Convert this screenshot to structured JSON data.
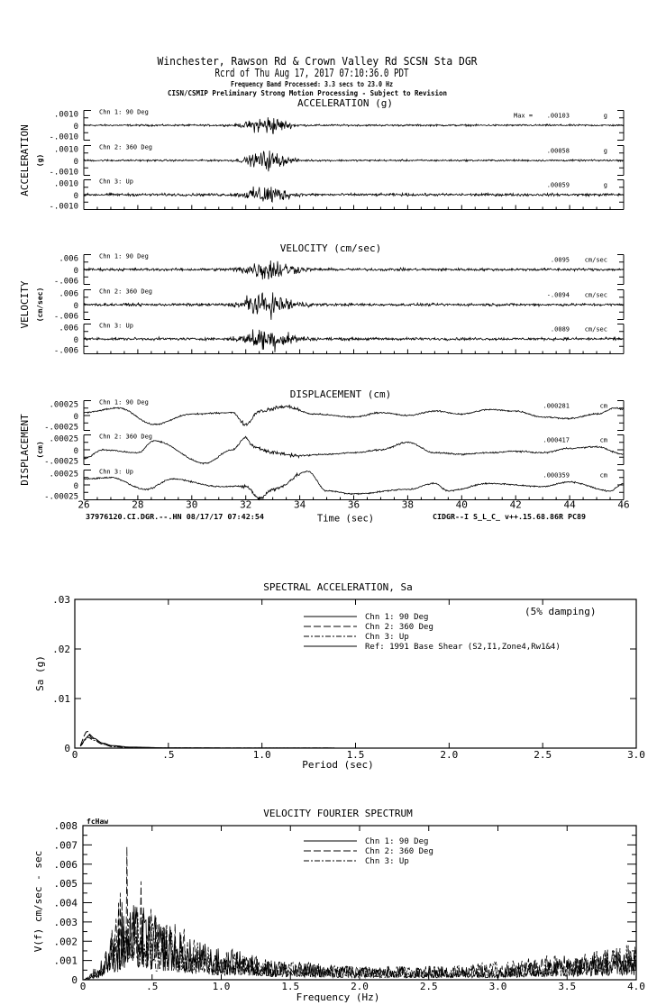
{
  "header": {
    "line1": "Winchester, Rawson Rd & Crown Valley Rd    SCSN Sta DGR",
    "line2": "Rcrd of Thu Aug 17, 2017 07:10:36.0 PDT",
    "line3": "Frequency Band Processed: 3.3 secs to 23.0 Hz",
    "line4": "CISN/CSMIP Preliminary Strong Motion Processing - Subject to Revision"
  },
  "footer": {
    "left": "37976120.CI.DGR.--.HN 08/17/17 07:42:54",
    "right": "CIDGR--I  S_L_C_  v++.15.68.86R PC89"
  },
  "chart_data": [
    {
      "type": "line",
      "title": "ACCELERATION (g)",
      "ylabel": "ACCELERATION",
      "yunit": "(g)",
      "xlim": [
        26,
        46
      ],
      "ylim": [
        -0.001,
        0.001
      ],
      "ytick_labels": [
        ".0010",
        "0",
        "-.0010"
      ],
      "max_prefix": "Max =",
      "channels": [
        {
          "name": "Chn 1: 90 Deg",
          "max": ".00103",
          "unit": "g"
        },
        {
          "name": "Chn 2: 360 Deg",
          "max": ".00058",
          "unit": "g"
        },
        {
          "name": "Chn 3: Up",
          "max": ".00059",
          "unit": "g"
        }
      ]
    },
    {
      "type": "line",
      "title": "VELOCITY (cm/sec)",
      "ylabel": "VELOCITY",
      "yunit": "(cm/sec)",
      "xlim": [
        26,
        46
      ],
      "ylim": [
        -0.006,
        0.006
      ],
      "ytick_labels": [
        ".006",
        "0",
        "-.006"
      ],
      "channels": [
        {
          "name": "Chn 1: 90 Deg",
          "max": ".0095",
          "unit": "cm/sec"
        },
        {
          "name": "Chn 2: 360 Deg",
          "max": "-.0094",
          "unit": "cm/sec"
        },
        {
          "name": "Chn 3: Up",
          "max": ".0089",
          "unit": "cm/sec"
        }
      ]
    },
    {
      "type": "line",
      "title": "DISPLACEMENT (cm)",
      "ylabel": "DISPLACEMENT",
      "yunit": "(cm)",
      "xlabel": "Time (sec)",
      "xlim": [
        26,
        46
      ],
      "ylim": [
        -0.00025,
        0.00025
      ],
      "xtick_labels": [
        "26",
        "28",
        "30",
        "32",
        "34",
        "36",
        "38",
        "40",
        "42",
        "44",
        "46"
      ],
      "ytick_labels": [
        ".00025",
        "0",
        "-.00025"
      ],
      "channels": [
        {
          "name": "Chn 1: 90 Deg",
          "max": ".000281",
          "unit": "cm",
          "trend": [
            [
              26,
              5e-05
            ],
            [
              27.3,
              0.000125
            ],
            [
              28.6,
              -0.00015
            ],
            [
              30,
              2.5e-05
            ],
            [
              31.5,
              5e-05
            ],
            [
              32,
              -0.00015
            ],
            [
              32.5,
              7.5e-05
            ],
            [
              33.5,
              0.00015
            ],
            [
              34.5,
              2.5e-05
            ],
            [
              36,
              -2.5e-05
            ],
            [
              37,
              5e-05
            ],
            [
              38,
              0
            ],
            [
              39,
              7.5e-05
            ],
            [
              40,
              2.5e-05
            ],
            [
              41,
              0.0001
            ],
            [
              42,
              7.5e-05
            ],
            [
              43,
              -2.5e-05
            ],
            [
              44,
              -5e-05
            ],
            [
              45,
              2.5e-05
            ],
            [
              45.7,
              0.000125
            ],
            [
              46,
              0.0001
            ]
          ]
        },
        {
          "name": "Chn 2: 360 Deg",
          "max": ".000417",
          "unit": "cm",
          "trend": [
            [
              26,
              -0.00015
            ],
            [
              26.7,
              0
            ],
            [
              28,
              -5e-05
            ],
            [
              28.6,
              0.00015
            ],
            [
              30.5,
              -0.000225
            ],
            [
              31.5,
              0
            ],
            [
              32,
              0.0002
            ],
            [
              32.3,
              5e-05
            ],
            [
              33,
              -5e-05
            ],
            [
              34,
              -0.0001
            ],
            [
              35,
              -7.5e-05
            ],
            [
              36,
              -5e-05
            ],
            [
              37,
              0
            ],
            [
              38,
              0.000125
            ],
            [
              39,
              -5e-05
            ],
            [
              40,
              -7.5e-05
            ],
            [
              41,
              -5e-05
            ],
            [
              42,
              -2.5e-05
            ],
            [
              43,
              -5e-05
            ],
            [
              44,
              2.5e-05
            ],
            [
              45,
              5e-05
            ],
            [
              46,
              -7.5e-05
            ]
          ]
        },
        {
          "name": "Chn 3: Up",
          "max": ".000359",
          "unit": "cm",
          "trend": [
            [
              26,
              0.0001
            ],
            [
              27,
              0.000125
            ],
            [
              28.3,
              -7.5e-05
            ],
            [
              29.3,
              0.0001
            ],
            [
              31,
              -2.5e-05
            ],
            [
              32,
              -2.5e-05
            ],
            [
              32.5,
              -0.000225
            ],
            [
              33,
              -7.5e-05
            ],
            [
              34.3,
              0.000225
            ],
            [
              35,
              -0.0001
            ],
            [
              36,
              -0.00015
            ],
            [
              38,
              -7.5e-05
            ],
            [
              39,
              2.5e-05
            ],
            [
              39.5,
              -0.0001
            ],
            [
              41,
              2.5e-05
            ],
            [
              43,
              -2.5e-05
            ],
            [
              44,
              5e-05
            ],
            [
              45.5,
              -0.0001
            ],
            [
              46,
              2.5e-05
            ]
          ]
        }
      ]
    },
    {
      "type": "line",
      "title": "SPECTRAL ACCELERATION, Sa",
      "xlabel": "Period (sec)",
      "ylabel": "Sa (g)",
      "note": "(5% damping)",
      "xlim": [
        0,
        3
      ],
      "ylim": [
        0,
        0.03
      ],
      "xtick_labels": [
        "0",
        ".5",
        "1.0",
        "1.5",
        "2.0",
        "2.5",
        "3.0"
      ],
      "ytick_labels": [
        "0",
        ".01",
        ".02",
        ".03"
      ],
      "legend": [
        "Chn 1: 90 Deg",
        "Chn 2: 360 Deg",
        "Chn 3: Up",
        "Ref: 1991 Base Shear (S2,I1,Zone4,Rw1&4)"
      ],
      "series": [
        {
          "name": "Chn 1: 90 Deg",
          "points": [
            [
              0.03,
              0.0004
            ],
            [
              0.06,
              0.002
            ],
            [
              0.08,
              0.0028
            ],
            [
              0.1,
              0.002
            ],
            [
              0.15,
              0.001
            ],
            [
              0.2,
              0.0005
            ],
            [
              0.3,
              0.0002
            ],
            [
              0.5,
              5e-05
            ],
            [
              1,
              1e-05
            ],
            [
              3,
              0
            ]
          ]
        },
        {
          "name": "Chn 2: 360 Deg",
          "points": [
            [
              0.03,
              0.0005
            ],
            [
              0.05,
              0.0025
            ],
            [
              0.065,
              0.0035
            ],
            [
              0.09,
              0.002
            ],
            [
              0.15,
              0.0008
            ],
            [
              0.2,
              0.0004
            ],
            [
              0.3,
              0.00015
            ],
            [
              0.5,
              4e-05
            ],
            [
              1,
              1e-05
            ],
            [
              3,
              0
            ]
          ]
        },
        {
          "name": "Chn 3: Up",
          "points": [
            [
              0.03,
              0.0004
            ],
            [
              0.05,
              0.0015
            ],
            [
              0.07,
              0.0022
            ],
            [
              0.1,
              0.0016
            ],
            [
              0.15,
              0.0008
            ],
            [
              0.2,
              0.0003
            ],
            [
              0.3,
              0.0001
            ],
            [
              0.5,
              3e-05
            ],
            [
              1,
              1e-05
            ],
            [
              3,
              0
            ]
          ]
        }
      ]
    },
    {
      "type": "line",
      "title": "VELOCITY FOURIER SPECTRUM",
      "corner_label": "fcHaw",
      "xlabel": "Frequency (Hz)",
      "ylabel": "V(f)   cm/sec - sec",
      "xlim": [
        0,
        4
      ],
      "ylim": [
        0,
        0.008
      ],
      "xtick_labels": [
        "0",
        ".5",
        "1.0",
        "1.5",
        "2.0",
        "2.5",
        "3.0",
        "3.5",
        "4.0"
      ],
      "ytick_labels": [
        "0",
        ".001",
        ".002",
        ".003",
        ".004",
        ".005",
        ".006",
        ".007",
        ".008"
      ],
      "legend": [
        "Chn 1: 90 Deg",
        "Chn 2: 360 Deg",
        "Chn 3: Up"
      ],
      "series": [
        {
          "name": "Chn 1: 90 Deg",
          "envelope": [
            [
              0,
              0
            ],
            [
              0.1,
              0.0003
            ],
            [
              0.2,
              0.001
            ],
            [
              0.3,
              0.0016
            ],
            [
              0.4,
              0.0017
            ],
            [
              0.6,
              0.0013
            ],
            [
              0.8,
              0.0009
            ],
            [
              1.0,
              0.0007
            ],
            [
              1.5,
              0.0004
            ],
            [
              2.0,
              0.0003
            ],
            [
              2.5,
              0.0003
            ],
            [
              3.0,
              0.0003
            ],
            [
              3.5,
              0.0005
            ],
            [
              4.0,
              0.0007
            ]
          ]
        },
        {
          "name": "Chn 2: 360 Deg",
          "envelope": [
            [
              0,
              0
            ],
            [
              0.1,
              0.0003
            ],
            [
              0.2,
              0.0012
            ],
            [
              0.3,
              0.0022
            ],
            [
              0.35,
              0.0026
            ],
            [
              0.5,
              0.0018
            ],
            [
              0.7,
              0.0012
            ],
            [
              1.0,
              0.0007
            ],
            [
              1.5,
              0.0004
            ],
            [
              2.0,
              0.0003
            ],
            [
              2.5,
              0.0003
            ],
            [
              3.0,
              0.0004
            ],
            [
              3.5,
              0.0006
            ],
            [
              4.0,
              0.0008
            ]
          ]
        },
        {
          "name": "Chn 3: Up",
          "envelope": [
            [
              0,
              0
            ],
            [
              0.1,
              0.0002
            ],
            [
              0.2,
              0.0008
            ],
            [
              0.3,
              0.0014
            ],
            [
              0.4,
              0.0015
            ],
            [
              0.6,
              0.0012
            ],
            [
              0.8,
              0.0009
            ],
            [
              1.0,
              0.0006
            ],
            [
              1.5,
              0.0004
            ],
            [
              2.0,
              0.0003
            ],
            [
              2.5,
              0.0003
            ],
            [
              3.0,
              0.0004
            ],
            [
              3.5,
              0.0005
            ],
            [
              4.0,
              0.0008
            ]
          ]
        }
      ]
    }
  ]
}
